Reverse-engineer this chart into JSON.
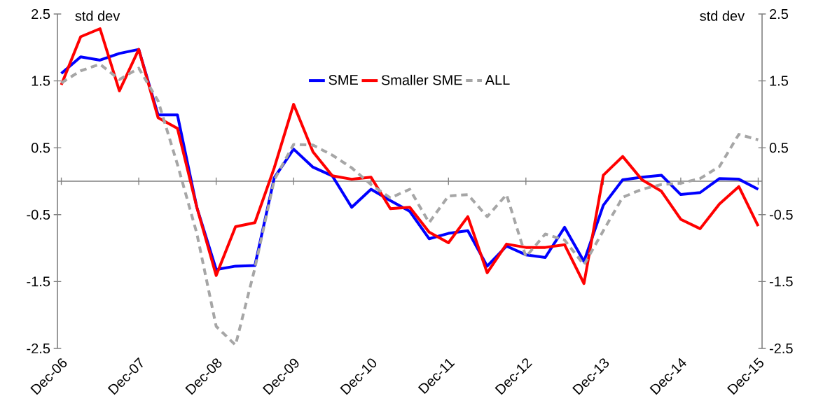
{
  "chart_data": {
    "type": "line",
    "categories": [
      "Dec-06",
      null,
      null,
      null,
      "Dec-07",
      null,
      null,
      null,
      "Dec-08",
      null,
      null,
      null,
      "Dec-09",
      null,
      null,
      null,
      "Dec-10",
      null,
      null,
      null,
      "Dec-11",
      null,
      null,
      null,
      "Dec-12",
      null,
      null,
      null,
      "Dec-13",
      null,
      null,
      null,
      "Dec-14",
      null,
      null,
      null,
      "Dec-15"
    ],
    "series": [
      {
        "name": "SME",
        "color": "#0000ff",
        "line_style": "solid",
        "values": [
          1.61,
          1.86,
          1.81,
          1.91,
          1.97,
          0.99,
          0.99,
          -0.39,
          -1.32,
          -1.27,
          -1.26,
          0.05,
          0.48,
          0.21,
          0.08,
          -0.39,
          -0.12,
          -0.29,
          -0.45,
          -0.86,
          -0.78,
          -0.74,
          -1.27,
          -0.97,
          -1.1,
          -1.14,
          -0.69,
          -1.2,
          -0.36,
          0.02,
          0.06,
          0.09,
          -0.2,
          -0.17,
          0.04,
          0.03,
          -0.12
        ]
      },
      {
        "name": "Smaller SME",
        "color": "#ff0000",
        "line_style": "solid",
        "values": [
          1.44,
          2.16,
          2.28,
          1.35,
          1.97,
          0.95,
          0.79,
          -0.39,
          -1.41,
          -0.68,
          -0.62,
          0.2,
          1.15,
          0.44,
          0.08,
          0.03,
          0.06,
          -0.41,
          -0.39,
          -0.76,
          -0.92,
          -0.53,
          -1.37,
          -0.94,
          -0.99,
          -0.99,
          -0.95,
          -1.53,
          0.09,
          0.37,
          0.02,
          -0.15,
          -0.57,
          -0.71,
          -0.34,
          -0.08,
          -0.67
        ]
      },
      {
        "name": "ALL",
        "color": "#a6a6a6",
        "line_style": "dashed",
        "values": [
          1.47,
          1.65,
          1.75,
          1.52,
          1.69,
          1.2,
          0.25,
          -0.78,
          -2.17,
          -2.45,
          -1.3,
          0.02,
          0.55,
          0.54,
          0.39,
          0.2,
          -0.05,
          -0.25,
          -0.12,
          -0.62,
          -0.22,
          -0.2,
          -0.53,
          -0.2,
          -1.13,
          -0.79,
          -0.88,
          -1.25,
          -0.74,
          -0.24,
          -0.12,
          -0.05,
          -0.03,
          0.04,
          0.22,
          0.7,
          0.62
        ]
      }
    ],
    "ylim": [
      -2.5,
      2.5
    ],
    "yticks": [
      -2.5,
      -1.5,
      -0.5,
      0.5,
      1.5,
      2.5
    ],
    "y2lim": [
      -2.5,
      2.5
    ],
    "y2ticks": [
      -2.5,
      -1.5,
      -0.5,
      0.5,
      1.5,
      2.5
    ],
    "annotations": [
      "std dev",
      "std dev"
    ],
    "legend": "top",
    "grid": false,
    "marker": "none"
  }
}
